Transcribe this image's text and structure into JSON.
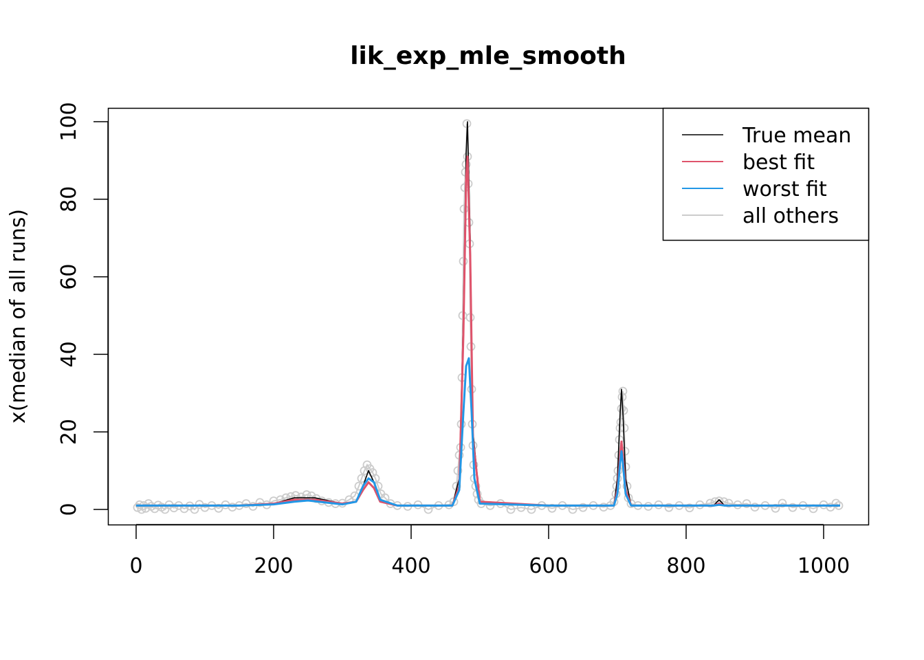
{
  "chart_data": {
    "type": "line",
    "title": "lik_exp_mle_smooth",
    "xlabel": "",
    "ylabel": "x(median of all runs)",
    "xlim": [
      0,
      1024
    ],
    "ylim": [
      0,
      100
    ],
    "x_ticks": [
      0,
      200,
      400,
      600,
      800,
      1000
    ],
    "y_ticks": [
      0,
      20,
      40,
      60,
      80,
      100
    ],
    "legend_position": "top-right",
    "colors": {
      "true_mean": "#000000",
      "best_fit": "#DF536B",
      "worst_fit": "#2297E6",
      "all_others": "#CCCCCC"
    },
    "series": [
      {
        "name": "True mean",
        "key": "true_mean",
        "x": [
          0,
          150,
          200,
          230,
          260,
          300,
          320,
          330,
          338,
          346,
          355,
          380,
          460,
          470,
          476,
          480,
          482,
          486,
          490,
          500,
          600,
          695,
          700,
          704,
          706,
          708,
          712,
          720,
          800,
          840,
          848,
          856,
          870,
          1024
        ],
        "values": [
          1,
          1,
          1.5,
          3,
          3,
          1.5,
          2,
          6,
          10,
          7,
          2,
          1,
          1,
          8,
          50,
          92,
          100,
          70,
          20,
          2,
          1,
          1,
          8,
          25,
          31,
          25,
          8,
          1,
          1,
          1,
          2.5,
          1,
          1,
          1
        ]
      },
      {
        "name": "best fit",
        "key": "best_fit",
        "x": [
          0,
          150,
          200,
          230,
          260,
          300,
          320,
          330,
          338,
          346,
          355,
          380,
          460,
          470,
          476,
          480,
          482,
          486,
          490,
          500,
          600,
          695,
          700,
          704,
          706,
          708,
          712,
          720,
          800,
          840,
          848,
          856,
          870,
          1024
        ],
        "values": [
          1,
          1,
          1.5,
          2.5,
          2.5,
          1.5,
          2,
          5,
          7,
          5.5,
          2,
          1,
          1,
          6,
          45,
          85,
          91,
          65,
          18,
          2,
          1,
          1,
          5,
          14,
          17.5,
          14,
          5,
          1,
          1,
          1,
          1.5,
          1,
          1,
          1
        ]
      },
      {
        "name": "worst fit",
        "key": "worst_fit",
        "x": [
          0,
          150,
          200,
          230,
          250,
          300,
          320,
          330,
          338,
          346,
          355,
          380,
          460,
          470,
          476,
          480,
          484,
          488,
          492,
          500,
          600,
          695,
          700,
          704,
          706,
          708,
          712,
          720,
          800,
          840,
          848,
          856,
          870,
          1024
        ],
        "values": [
          1,
          1,
          1.3,
          2,
          2.3,
          1.3,
          2,
          6,
          8,
          7,
          2.5,
          1,
          1,
          5,
          25,
          37,
          39,
          25,
          8,
          1.5,
          1,
          1,
          4,
          12,
          15,
          12,
          4,
          1,
          1,
          1,
          1.2,
          1,
          1,
          1
        ]
      },
      {
        "name": "all others",
        "key": "all_others",
        "points": [
          [
            2,
            0.5
          ],
          [
            5,
            1.2
          ],
          [
            8,
            0
          ],
          [
            11,
            1
          ],
          [
            14,
            0.3
          ],
          [
            18,
            1.5
          ],
          [
            22,
            0.8
          ],
          [
            27,
            0.2
          ],
          [
            32,
            1.1
          ],
          [
            37,
            0.6
          ],
          [
            42,
            0
          ],
          [
            48,
            1.2
          ],
          [
            55,
            0.4
          ],
          [
            62,
            1
          ],
          [
            70,
            0.2
          ],
          [
            78,
            0.9
          ],
          [
            85,
            0
          ],
          [
            92,
            1.3
          ],
          [
            100,
            0.5
          ],
          [
            110,
            1
          ],
          [
            120,
            0.3
          ],
          [
            130,
            1.2
          ],
          [
            140,
            0.6
          ],
          [
            150,
            1
          ],
          [
            160,
            1.5
          ],
          [
            170,
            0.8
          ],
          [
            180,
            1.8
          ],
          [
            190,
            1.2
          ],
          [
            200,
            2.2
          ],
          [
            210,
            2.5
          ],
          [
            218,
            3
          ],
          [
            225,
            3.3
          ],
          [
            232,
            3.6
          ],
          [
            240,
            3.2
          ],
          [
            248,
            3.8
          ],
          [
            255,
            3.5
          ],
          [
            262,
            2.8
          ],
          [
            270,
            2.2
          ],
          [
            280,
            1.8
          ],
          [
            290,
            1.5
          ],
          [
            300,
            1.6
          ],
          [
            310,
            2.5
          ],
          [
            318,
            3.5
          ],
          [
            324,
            6
          ],
          [
            328,
            8
          ],
          [
            332,
            10
          ],
          [
            336,
            11.5
          ],
          [
            340,
            10.5
          ],
          [
            344,
            9.5
          ],
          [
            348,
            8
          ],
          [
            352,
            6
          ],
          [
            356,
            4
          ],
          [
            362,
            3
          ],
          [
            370,
            1.5
          ],
          [
            380,
            1
          ],
          [
            395,
            0.8
          ],
          [
            410,
            1.2
          ],
          [
            425,
            0
          ],
          [
            440,
            1
          ],
          [
            455,
            1.2
          ],
          [
            462,
            2
          ],
          [
            466,
            6
          ],
          [
            468,
            10
          ],
          [
            470,
            14
          ],
          [
            472,
            16
          ],
          [
            473,
            22
          ],
          [
            474,
            34
          ],
          [
            475,
            50
          ],
          [
            476,
            64
          ],
          [
            477,
            77.5
          ],
          [
            478,
            83
          ],
          [
            479,
            87
          ],
          [
            480,
            89
          ],
          [
            481,
            99.5
          ],
          [
            482,
            91
          ],
          [
            483,
            84
          ],
          [
            484,
            74
          ],
          [
            485,
            68.5
          ],
          [
            486,
            49.5
          ],
          [
            487,
            42
          ],
          [
            488,
            31
          ],
          [
            489,
            22
          ],
          [
            490,
            16.5
          ],
          [
            491,
            11.5
          ],
          [
            492,
            8
          ],
          [
            494,
            6
          ],
          [
            496,
            4
          ],
          [
            498,
            2.5
          ],
          [
            502,
            1.5
          ],
          [
            515,
            1
          ],
          [
            530,
            1.5
          ],
          [
            545,
            0
          ],
          [
            560,
            0.5
          ],
          [
            575,
            0
          ],
          [
            590,
            1
          ],
          [
            605,
            0.3
          ],
          [
            620,
            1
          ],
          [
            635,
            0
          ],
          [
            650,
            0.5
          ],
          [
            665,
            1
          ],
          [
            680,
            0.6
          ],
          [
            690,
            1
          ],
          [
            695,
            2
          ],
          [
            698,
            4
          ],
          [
            699,
            6
          ],
          [
            700,
            8
          ],
          [
            701,
            10
          ],
          [
            702,
            14
          ],
          [
            703,
            18
          ],
          [
            704,
            21
          ],
          [
            705,
            22.5
          ],
          [
            706,
            26
          ],
          [
            707,
            29
          ],
          [
            708,
            30.5
          ],
          [
            709,
            25.5
          ],
          [
            710,
            21
          ],
          [
            711,
            15
          ],
          [
            712,
            11
          ],
          [
            714,
            6
          ],
          [
            716,
            3
          ],
          [
            720,
            1.5
          ],
          [
            730,
            1
          ],
          [
            745,
            0.8
          ],
          [
            760,
            1.2
          ],
          [
            775,
            0.5
          ],
          [
            790,
            1
          ],
          [
            805,
            0.4
          ],
          [
            820,
            1.2
          ],
          [
            835,
            1.6
          ],
          [
            842,
            2
          ],
          [
            848,
            2.2
          ],
          [
            855,
            2
          ],
          [
            862,
            1.6
          ],
          [
            875,
            1.2
          ],
          [
            888,
            1.5
          ],
          [
            900,
            0.6
          ],
          [
            915,
            1
          ],
          [
            930,
            0.3
          ],
          [
            940,
            1.6
          ],
          [
            955,
            0.5
          ],
          [
            970,
            1
          ],
          [
            985,
            0.2
          ],
          [
            1000,
            1.2
          ],
          [
            1010,
            0.6
          ],
          [
            1018,
            1.6
          ],
          [
            1022,
            1
          ]
        ]
      }
    ]
  }
}
